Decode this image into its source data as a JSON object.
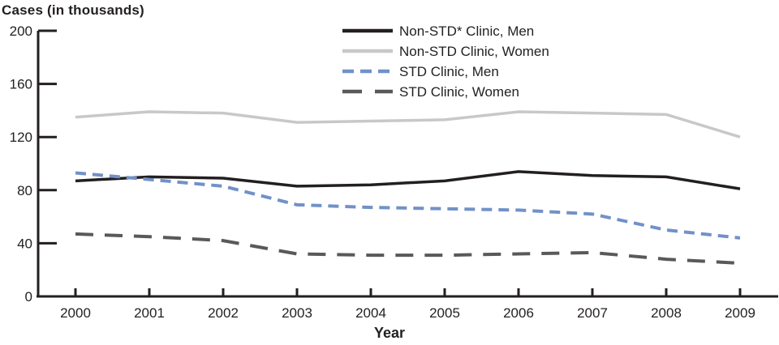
{
  "chart_data": {
    "type": "line",
    "title": "Cases (in thousands)",
    "xlabel": "Year",
    "ylabel": "Cases (in thousands)",
    "x": [
      2000,
      2001,
      2002,
      2003,
      2004,
      2005,
      2006,
      2007,
      2008,
      2009
    ],
    "ylim": [
      0,
      200
    ],
    "yticks": [
      0,
      40,
      80,
      120,
      160,
      200
    ],
    "grid": false,
    "legend_position": "top-center-inside",
    "axis_color": "#231f20",
    "series": [
      {
        "name": "Non-STD* Clinic, Men",
        "color": "#231f20",
        "style": "solid",
        "values": [
          87,
          90,
          89,
          83,
          84,
          87,
          94,
          91,
          90,
          81
        ]
      },
      {
        "name": "Non-STD Clinic, Women",
        "color": "#c7c8ca",
        "style": "solid",
        "values": [
          135,
          139,
          138,
          131,
          132,
          133,
          139,
          138,
          137,
          120
        ]
      },
      {
        "name": "STD Clinic, Men",
        "color": "#7191c8",
        "style": "dashed",
        "values": [
          93,
          88,
          83,
          69,
          67,
          66,
          65,
          62,
          50,
          44
        ]
      },
      {
        "name": "STD Clinic, Women",
        "color": "#58595b",
        "style": "long-dashed",
        "values": [
          47,
          45,
          42,
          32,
          31,
          31,
          32,
          33,
          28,
          25
        ]
      }
    ]
  }
}
